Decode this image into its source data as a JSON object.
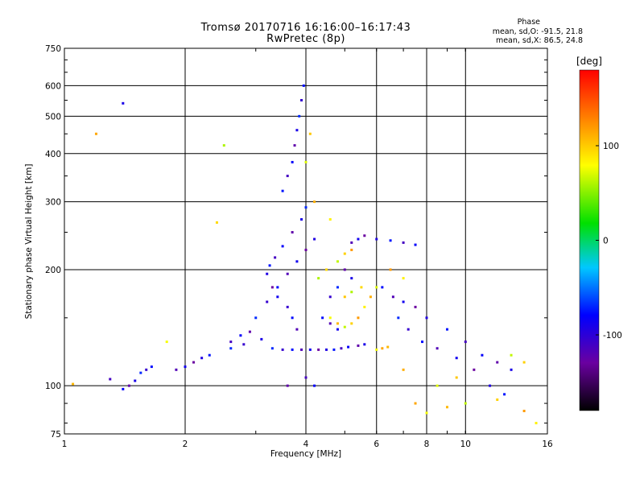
{
  "chart_data": {
    "type": "scatter",
    "title": "Tromsø 20170716 16:16:00–16:17:43",
    "subtitle": "RwPretec (8p)",
    "xlabel": "Frequency [MHz]",
    "ylabel": "Stationary phase Virtual Height [km]",
    "x_scale": "log",
    "y_scale": "log",
    "xlim": [
      1,
      16
    ],
    "ylim": [
      75,
      750
    ],
    "x_ticks": [
      1,
      2,
      4,
      6,
      8,
      10,
      16
    ],
    "y_ticks": [
      75,
      100,
      200,
      300,
      400,
      500,
      600,
      750
    ],
    "x_tick_labels": [
      "1",
      "2",
      "4",
      "6",
      "8",
      "10",
      "16"
    ],
    "y_tick_labels": [
      "75",
      "100",
      "200",
      "300",
      "400",
      "500",
      "600",
      "750"
    ],
    "grid": true,
    "phase_stats": {
      "title": "Phase",
      "line_o": "mean, sd,O: -91.5, 21.8",
      "line_x": "mean, sd,X: 86.5, 24.8"
    },
    "colorbar": {
      "unit": "[deg]",
      "range": [
        -180,
        180
      ],
      "ticks": [
        100,
        0,
        -100
      ],
      "tick_labels": [
        "100",
        "0",
        "-100"
      ]
    },
    "series": [
      {
        "name": "O",
        "color_value": -100,
        "points": [
          [
            1.3,
            104
          ],
          [
            1.4,
            98
          ],
          [
            1.45,
            100
          ],
          [
            1.5,
            103
          ],
          [
            1.55,
            108
          ],
          [
            1.6,
            110
          ],
          [
            1.65,
            112
          ],
          [
            1.9,
            110
          ],
          [
            2.0,
            112
          ],
          [
            2.1,
            115
          ],
          [
            2.2,
            118
          ],
          [
            2.3,
            120
          ],
          [
            2.6,
            130
          ],
          [
            2.75,
            135
          ],
          [
            2.9,
            138
          ],
          [
            3.1,
            132
          ],
          [
            3.3,
            125
          ],
          [
            3.5,
            124
          ],
          [
            3.7,
            124
          ],
          [
            3.9,
            124
          ],
          [
            4.1,
            124
          ],
          [
            4.3,
            124
          ],
          [
            4.5,
            124
          ],
          [
            4.7,
            124
          ],
          [
            4.9,
            125
          ],
          [
            5.1,
            126
          ],
          [
            5.4,
            127
          ],
          [
            5.6,
            128
          ],
          [
            3.0,
            150
          ],
          [
            3.2,
            165
          ],
          [
            3.4,
            180
          ],
          [
            3.6,
            195
          ],
          [
            3.8,
            210
          ],
          [
            4.0,
            225
          ],
          [
            4.2,
            240
          ],
          [
            3.25,
            205
          ],
          [
            3.35,
            215
          ],
          [
            3.5,
            230
          ],
          [
            3.7,
            250
          ],
          [
            3.9,
            270
          ],
          [
            4.0,
            290
          ],
          [
            3.6,
            160
          ],
          [
            3.7,
            150
          ],
          [
            3.8,
            140
          ],
          [
            3.4,
            170
          ],
          [
            3.3,
            180
          ],
          [
            3.2,
            195
          ],
          [
            3.5,
            320
          ],
          [
            3.6,
            350
          ],
          [
            3.7,
            380
          ],
          [
            3.75,
            420
          ],
          [
            3.8,
            460
          ],
          [
            3.85,
            500
          ],
          [
            3.9,
            550
          ],
          [
            3.95,
            600
          ],
          [
            5.2,
            235
          ],
          [
            5.4,
            240
          ],
          [
            5.6,
            245
          ],
          [
            6.0,
            240
          ],
          [
            6.5,
            238
          ],
          [
            7.0,
            235
          ],
          [
            7.5,
            232
          ],
          [
            5.0,
            200
          ],
          [
            5.2,
            190
          ],
          [
            4.8,
            180
          ],
          [
            4.6,
            170
          ],
          [
            6.2,
            180
          ],
          [
            6.6,
            170
          ],
          [
            7.0,
            165
          ],
          [
            7.5,
            160
          ],
          [
            8.0,
            150
          ],
          [
            9.0,
            140
          ],
          [
            10.0,
            130
          ],
          [
            11.0,
            120
          ],
          [
            12.0,
            115
          ],
          [
            13.0,
            110
          ],
          [
            6.8,
            150
          ],
          [
            7.2,
            140
          ],
          [
            7.8,
            130
          ],
          [
            8.5,
            125
          ],
          [
            9.5,
            118
          ],
          [
            10.5,
            110
          ],
          [
            11.5,
            100
          ],
          [
            12.5,
            95
          ],
          [
            4.0,
            105
          ],
          [
            4.2,
            100
          ],
          [
            3.6,
            100
          ],
          [
            1.4,
            540
          ],
          [
            2.6,
            125
          ],
          [
            2.8,
            128
          ],
          [
            4.4,
            150
          ],
          [
            4.6,
            145
          ],
          [
            4.8,
            140
          ]
        ]
      },
      {
        "name": "X",
        "color_value": 90,
        "points": [
          [
            4.6,
            150
          ],
          [
            4.8,
            145
          ],
          [
            5.0,
            142
          ],
          [
            5.2,
            145
          ],
          [
            5.4,
            150
          ],
          [
            5.6,
            160
          ],
          [
            5.8,
            170
          ],
          [
            6.0,
            180
          ],
          [
            5.0,
            170
          ],
          [
            5.2,
            175
          ],
          [
            5.5,
            180
          ],
          [
            6.2,
            125
          ],
          [
            6.0,
            124
          ],
          [
            6.4,
            126
          ],
          [
            4.8,
            210
          ],
          [
            5.0,
            220
          ],
          [
            5.2,
            225
          ],
          [
            4.6,
            270
          ],
          [
            4.2,
            300
          ],
          [
            4.0,
            380
          ],
          [
            4.1,
            450
          ],
          [
            4.3,
            190
          ],
          [
            4.5,
            200
          ],
          [
            7.5,
            90
          ],
          [
            8.0,
            85
          ],
          [
            9.0,
            88
          ],
          [
            10.0,
            90
          ],
          [
            12.0,
            92
          ],
          [
            14.0,
            86
          ],
          [
            15.0,
            80
          ],
          [
            7.0,
            110
          ],
          [
            8.5,
            100
          ],
          [
            9.5,
            105
          ],
          [
            2.5,
            420
          ],
          [
            2.4,
            265
          ],
          [
            1.2,
            450
          ],
          [
            1.8,
            130
          ],
          [
            1.05,
            101
          ],
          [
            13.0,
            120
          ],
          [
            14.0,
            115
          ],
          [
            6.5,
            200
          ],
          [
            7.0,
            190
          ]
        ]
      }
    ]
  }
}
